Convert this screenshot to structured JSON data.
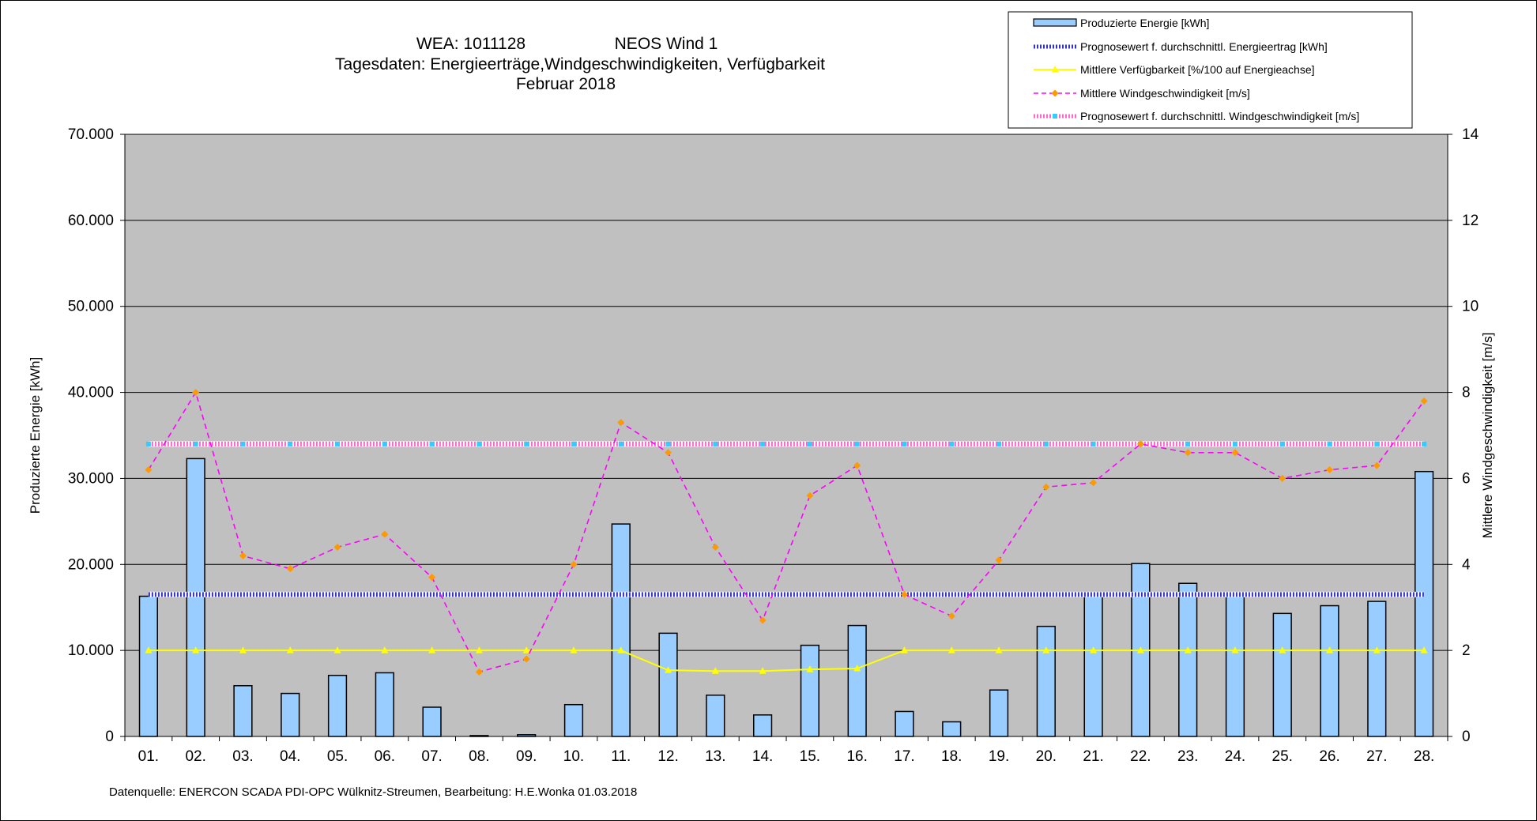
{
  "header": {
    "line1_left": "WEA: 1011128",
    "line1_right": "NEOS Wind 1",
    "line2": "Tagesdaten:  Energieerträge,Windgeschwindigkeiten,  Verfügbarkeit",
    "line3": "Februar 2018"
  },
  "footer": {
    "source": "Datenquelle:  ENERCON  SCADA PDI-OPC Wülknitz-Streumen,    Bearbeitung:  H.E.Wonka     01.03.2018"
  },
  "legend": {
    "items": [
      {
        "label": "Produzierte Energie [kWh]",
        "kind": "bar"
      },
      {
        "label": "Prognosewert f. durchschnittl. Energieertrag  [kWh]",
        "kind": "dotted-blue"
      },
      {
        "label": "Mittlere Verfügbarkeit [%/100 auf Energieachse]",
        "kind": "line-yellow"
      },
      {
        "label": "Mittlere Windgeschwindigkeit [m/s]",
        "kind": "dashed-magenta"
      },
      {
        "label": "Prognosewert f. durchschnittl. Windgeschwindigkeit [m/s]",
        "kind": "dotted-pink"
      }
    ]
  },
  "colors": {
    "plot_bg": "#c0c0c0",
    "bar_fill": "#99ccff",
    "bar_stroke": "#000000",
    "energy_forecast": "#3333cc",
    "availability": "#ffff00",
    "wind": "#ff00ff",
    "wind_marker": "#ff9900",
    "wind_forecast": "#ff66cc",
    "wind_forecast_alt": "#33ccff"
  },
  "chart_data": {
    "type": "bar",
    "categories": [
      "01.",
      "02.",
      "03.",
      "04.",
      "05.",
      "06.",
      "07.",
      "08.",
      "09.",
      "10.",
      "11.",
      "12.",
      "13.",
      "14.",
      "15.",
      "16.",
      "17.",
      "18.",
      "19.",
      "20.",
      "21.",
      "22.",
      "23.",
      "24.",
      "25.",
      "26.",
      "27.",
      "28."
    ],
    "series": [
      {
        "name": "Produzierte Energie [kWh]",
        "type": "bar",
        "axis": "left",
        "values": [
          16300,
          32300,
          5900,
          5000,
          7100,
          7400,
          3400,
          100,
          200,
          3700,
          24700,
          12000,
          4800,
          2500,
          10600,
          12900,
          2900,
          1700,
          5400,
          12800,
          16300,
          20100,
          17800,
          16300,
          14300,
          15200,
          15700,
          30800
        ]
      },
      {
        "name": "Prognosewert f. durchschnittl. Energieertrag  [kWh]",
        "type": "line",
        "axis": "left",
        "values": [
          16500,
          16500,
          16500,
          16500,
          16500,
          16500,
          16500,
          16500,
          16500,
          16500,
          16500,
          16500,
          16500,
          16500,
          16500,
          16500,
          16500,
          16500,
          16500,
          16500,
          16500,
          16500,
          16500,
          16500,
          16500,
          16500,
          16500,
          16500
        ]
      },
      {
        "name": "Mittlere Verfügbarkeit [%/100 auf Energieachse]",
        "type": "line",
        "axis": "left",
        "values": [
          10000,
          10000,
          10000,
          10000,
          10000,
          10000,
          10000,
          10000,
          10000,
          10000,
          10000,
          7700,
          7600,
          7600,
          7800,
          7900,
          10000,
          10000,
          10000,
          10000,
          10000,
          10000,
          10000,
          10000,
          10000,
          10000,
          10000,
          10000
        ]
      },
      {
        "name": "Mittlere Windgeschwindigkeit [m/s]",
        "type": "line",
        "axis": "right",
        "values": [
          6.2,
          8.0,
          4.2,
          3.9,
          4.4,
          4.7,
          3.7,
          1.5,
          1.8,
          4.0,
          7.3,
          6.6,
          4.4,
          2.7,
          5.6,
          6.3,
          3.3,
          2.8,
          4.1,
          5.8,
          5.9,
          6.8,
          6.6,
          6.6,
          6.0,
          6.2,
          6.3,
          7.8
        ]
      },
      {
        "name": "Prognosewert f. durchschnittl. Windgeschwindigkeit [m/s]",
        "type": "line",
        "axis": "right",
        "values": [
          6.8,
          6.8,
          6.8,
          6.8,
          6.8,
          6.8,
          6.8,
          6.8,
          6.8,
          6.8,
          6.8,
          6.8,
          6.8,
          6.8,
          6.8,
          6.8,
          6.8,
          6.8,
          6.8,
          6.8,
          6.8,
          6.8,
          6.8,
          6.8,
          6.8,
          6.8,
          6.8,
          6.8
        ]
      }
    ],
    "ylabel": "Produzierte Energie [kWh]",
    "y2label": "Mittlere Windgeschwindigkeit [m/s]",
    "ylim": [
      0,
      70000
    ],
    "y2lim": [
      0,
      14
    ],
    "yticks": [
      "0",
      "10.000",
      "20.000",
      "30.000",
      "40.000",
      "50.000",
      "60.000",
      "70.000"
    ],
    "y2ticks": [
      "0",
      "2",
      "4",
      "6",
      "8",
      "10",
      "12",
      "14"
    ],
    "grid": true,
    "legend_position": "top-right"
  }
}
